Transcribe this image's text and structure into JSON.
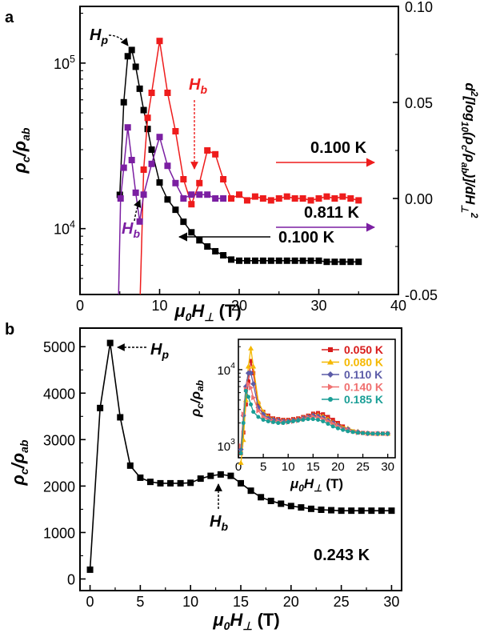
{
  "chart_data": [
    {
      "panel": "a",
      "type": "scatter",
      "xlabel": "μ0H⊥ (T)",
      "ylabel_left": "ρc/ρab",
      "ylabel_right": "d2[log10(ρc/ρab)]/dH⊥2",
      "xlim": [
        0,
        40
      ],
      "xticks": [
        "0",
        "10",
        "20",
        "30",
        "40"
      ],
      "ylim_left_log": [
        4000,
        220000
      ],
      "yticks_left": [
        "10^4",
        "10^5"
      ],
      "ylim_right": [
        -0.05,
        0.1
      ],
      "yticks_right": [
        "-0.05",
        "0.00",
        "0.05",
        "0.10"
      ],
      "annotations": {
        "hp": "H",
        "hp_sub": "p",
        "hb_red": "H",
        "hb_red_sub": "b",
        "hb_purple": "H",
        "hb_purple_sub": "b",
        "label_red": "0.100 K",
        "label_purple": "0.811 K",
        "label_black": "0.100 K"
      },
      "series": [
        {
          "axis": "left",
          "color": "#000000",
          "marker": "square",
          "x": [
            5,
            5.5,
            6,
            6.5,
            7,
            7.5,
            8,
            8.5,
            9,
            10,
            11,
            12,
            13,
            14,
            15,
            16,
            17,
            18,
            19,
            20,
            21,
            22,
            23,
            24,
            25,
            26,
            27,
            28,
            29,
            30,
            31,
            32,
            33,
            34,
            35
          ],
          "y": [
            16000,
            58000,
            110000,
            120000,
            95000,
            70000,
            52000,
            40000,
            30000,
            19000,
            15000,
            13000,
            11000,
            9500,
            8500,
            7800,
            7300,
            6900,
            6500,
            6400,
            6400,
            6400,
            6400,
            6400,
            6400,
            6400,
            6400,
            6400,
            6400,
            6400,
            6300,
            6300,
            6300,
            6300,
            6300
          ]
        },
        {
          "axis": "right",
          "color": "#ee1c1c",
          "marker": "square",
          "x": [
            7.5,
            8,
            8.5,
            9,
            10,
            11,
            12,
            13,
            14,
            15,
            16,
            17,
            18,
            19,
            20,
            21,
            22,
            23,
            24,
            25,
            26,
            27,
            28,
            29,
            30,
            31,
            32,
            33,
            34,
            35
          ],
          "y": [
            -0.06,
            0.015,
            0.042,
            0.055,
            0.082,
            0.055,
            0.035,
            0.01,
            -0.003,
            0.008,
            0.025,
            0.023,
            0.01,
            0,
            0.002,
            -0.001,
            0.001,
            0,
            -0.001,
            0,
            0.001,
            0,
            0,
            -0.001,
            0,
            0.001,
            0,
            0.001,
            0,
            -0.001
          ]
        },
        {
          "axis": "right",
          "color": "#7b1fa2",
          "marker": "square",
          "x": [
            4.8,
            5.1,
            5.5,
            6,
            6.5,
            7,
            7.5,
            8,
            9,
            10,
            11,
            12,
            13,
            14,
            15,
            16,
            17,
            18
          ],
          "y": [
            -0.06,
            0.0,
            0.016,
            0.037,
            0.02,
            0.003,
            -0.012,
            0.002,
            0.018,
            0.032,
            0.017,
            0.008,
            0.0,
            0.002,
            0.002,
            0.002,
            0.0,
            0.0
          ]
        }
      ]
    },
    {
      "panel": "b",
      "type": "line",
      "xlabel": "μ0H⊥ (T)",
      "ylabel": "ρc/ρab",
      "xlim": [
        -1,
        31
      ],
      "xticks": [
        "0",
        "5",
        "10",
        "15",
        "20",
        "25",
        "30"
      ],
      "ylim": [
        -250,
        5400
      ],
      "yticks": [
        "0",
        "1000",
        "2000",
        "3000",
        "4000",
        "5000"
      ],
      "annotations": {
        "hp": "H",
        "hp_sub": "p",
        "hb": "H",
        "hb_sub": "b",
        "temperature": "0.243 K"
      },
      "series": [
        {
          "color": "#000000",
          "marker": "square",
          "x": [
            0,
            1,
            2,
            3,
            4,
            5,
            6,
            7,
            8,
            9,
            10,
            11,
            12,
            13,
            14,
            15,
            16,
            17,
            18,
            19,
            20,
            21,
            22,
            23,
            24,
            25,
            26,
            27,
            28,
            29,
            30
          ],
          "y": [
            200,
            3680,
            5080,
            3480,
            2440,
            2180,
            2090,
            2060,
            2060,
            2060,
            2070,
            2160,
            2220,
            2250,
            2220,
            2060,
            1900,
            1760,
            1680,
            1620,
            1570,
            1540,
            1510,
            1490,
            1480,
            1470,
            1470,
            1470,
            1470,
            1470,
            1470
          ]
        }
      ]
    },
    {
      "panel": "b-inset",
      "type": "line",
      "xlabel": "μ0H⊥ (T)",
      "ylabel": "ρc/ρab",
      "xlim": [
        0,
        31.5
      ],
      "xticks": [
        "0",
        "5",
        "10",
        "15",
        "20",
        "25",
        "30"
      ],
      "ylim_log": [
        700,
        25000
      ],
      "yticks": [
        "10^3",
        "10^4"
      ],
      "series": [
        {
          "name": "0.050 K",
          "color": "#d81b1b",
          "marker": "square",
          "x": [
            0.5,
            1,
            1.5,
            2,
            2.5,
            3,
            4,
            5,
            6,
            7,
            8,
            9,
            10,
            11,
            12,
            13,
            14,
            15,
            16,
            17,
            18,
            19,
            20,
            21,
            22,
            23,
            24,
            25,
            26,
            27,
            28,
            29,
            30
          ],
          "y": [
            800,
            1500,
            3500,
            7000,
            13000,
            9000,
            3600,
            2800,
            2500,
            2300,
            2250,
            2200,
            2200,
            2250,
            2300,
            2400,
            2500,
            2650,
            2700,
            2600,
            2400,
            2200,
            2000,
            1800,
            1650,
            1550,
            1500,
            1480,
            1460,
            1450,
            1450,
            1450,
            1450
          ]
        },
        {
          "name": "0.080 K",
          "color": "#f5b800",
          "marker": "triangle",
          "x": [
            0.5,
            1,
            1.5,
            2,
            2.5,
            3,
            4,
            5,
            6,
            7,
            8,
            9,
            10,
            11,
            12,
            13,
            14,
            15,
            16,
            17,
            18,
            19,
            20,
            22,
            24,
            26,
            28,
            30
          ],
          "y": [
            600,
            1200,
            4000,
            11000,
            19000,
            11000,
            3800,
            2800,
            2400,
            2250,
            2200,
            2150,
            2150,
            2200,
            2250,
            2350,
            2450,
            2550,
            2550,
            2450,
            2250,
            2050,
            1900,
            1700,
            1550,
            1470,
            1450,
            1450
          ]
        },
        {
          "name": "0.110 K",
          "color": "#5c5ca8",
          "marker": "diamond",
          "x": [
            0.5,
            1,
            1.5,
            2,
            2.5,
            3,
            4,
            5,
            6,
            7,
            8,
            9,
            10,
            11,
            12,
            13,
            14,
            15,
            16,
            17,
            18,
            19,
            20,
            22,
            24,
            26,
            28,
            30
          ],
          "y": [
            900,
            2500,
            6000,
            9000,
            9000,
            6500,
            3200,
            2600,
            2300,
            2200,
            2150,
            2100,
            2100,
            2150,
            2200,
            2300,
            2400,
            2500,
            2450,
            2350,
            2150,
            2000,
            1850,
            1650,
            1520,
            1460,
            1450,
            1450
          ]
        },
        {
          "name": "0.140 K",
          "color": "#f07070",
          "marker": "triangle-right",
          "x": [
            0.5,
            1,
            1.5,
            2,
            2.5,
            3,
            4,
            5,
            6,
            7,
            8,
            9,
            10,
            11,
            12,
            13,
            14,
            15,
            16,
            17,
            18,
            19,
            20,
            22,
            24,
            26,
            28,
            30
          ],
          "y": [
            1000,
            2600,
            5500,
            6500,
            5800,
            4300,
            2900,
            2400,
            2200,
            2100,
            2100,
            2050,
            2050,
            2100,
            2150,
            2250,
            2350,
            2400,
            2350,
            2250,
            2100,
            1950,
            1800,
            1620,
            1500,
            1460,
            1450,
            1450
          ]
        },
        {
          "name": "0.185 K",
          "color": "#1a9e96",
          "marker": "circle",
          "x": [
            0.5,
            1,
            1.5,
            2,
            2.5,
            3,
            4,
            5,
            6,
            7,
            8,
            9,
            10,
            11,
            12,
            13,
            14,
            15,
            16,
            17,
            18,
            19,
            20,
            21,
            22,
            23,
            24,
            25,
            26,
            27,
            28,
            29,
            30
          ],
          "y": [
            800,
            2000,
            5300,
            4400,
            3500,
            2800,
            2400,
            2200,
            2100,
            2050,
            2000,
            2000,
            2050,
            2100,
            2150,
            2200,
            2250,
            2250,
            2200,
            2100,
            1950,
            1800,
            1700,
            1620,
            1560,
            1520,
            1490,
            1470,
            1460,
            1450,
            1450,
            1450,
            1450
          ]
        }
      ]
    }
  ]
}
